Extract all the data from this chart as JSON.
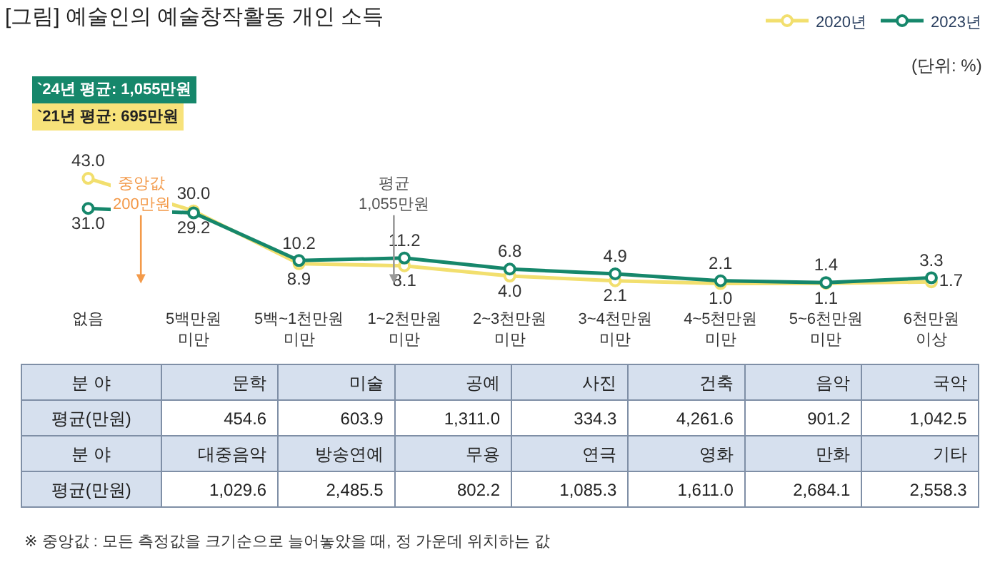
{
  "chart_data": [
    {
      "type": "line",
      "title": "[그림] 예술인의 예술창작활동 개인 소득",
      "categories": [
        "없음",
        "5백만원\n미만",
        "5백~1천만원\n미만",
        "1~2천만원\n미만",
        "2~3천만원\n미만",
        "3~4천만원\n미만",
        "4~5천만원\n미만",
        "5~6천만원\n미만",
        "6천만원\n이상"
      ],
      "series": [
        {
          "name": "2020년",
          "color": "#f2df6e",
          "values": [
            43.0,
            30.0,
            8.9,
            8.1,
            4.0,
            2.1,
            1.0,
            1.1,
            1.7
          ],
          "value_labels": [
            "43.0",
            "30.0",
            "8.9",
            "8.1",
            "4.0",
            "2.1",
            "1.0",
            "1.1",
            "1.7"
          ]
        },
        {
          "name": "2023년",
          "color": "#16876b",
          "values": [
            31.0,
            29.2,
            10.2,
            11.2,
            6.8,
            4.9,
            2.1,
            1.4,
            3.3
          ],
          "value_labels": [
            "31.0",
            "29.2",
            "10.2",
            "11.2",
            "6.8",
            "4.9",
            "2.1",
            "1.4",
            "3.3"
          ]
        }
      ],
      "marker": "circle",
      "legend": "top right",
      "annotations": [
        "`24년 평균: 1,055만원",
        "`21년 평균: 695만원",
        "중앙값\n200만원",
        "평균\n1,055만원",
        "(단위: %)",
        "※ 중앙값 : 모든 측정값을 크기순으로 늘어놓았을 때, 정 가운데 위치하는 값"
      ]
    },
    {
      "type": "other",
      "annotations": [
        "분 야",
        "문학",
        "미술",
        "공예",
        "사진",
        "건축",
        "음악",
        "국악",
        "평균(만원)",
        "454.6",
        "603.9",
        "1,311.0",
        "334.3",
        "4,261.6",
        "901.2",
        "1,042.5",
        "분 야",
        "대중음악",
        "방송연예",
        "무용",
        "연극",
        "영화",
        "만화",
        "기타",
        "평균(만원)",
        "1,029.6",
        "2,485.5",
        "802.2",
        "1,085.3",
        "1,611.0",
        "2,684.1",
        "2,558.3"
      ]
    }
  ]
}
